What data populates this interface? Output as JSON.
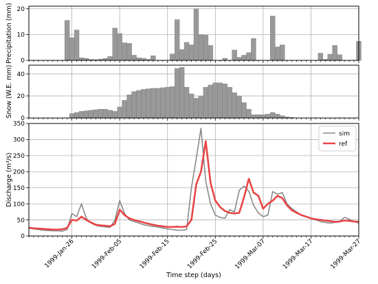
{
  "chart_data": {
    "type": "bar",
    "x": [
      "1999-Jan-17",
      "1999-Jan-18",
      "1999-Jan-19",
      "1999-Jan-20",
      "1999-Jan-21",
      "1999-Jan-22",
      "1999-Jan-23",
      "1999-Jan-24",
      "1999-Jan-25",
      "1999-Jan-26",
      "1999-Jan-27",
      "1999-Jan-28",
      "1999-Jan-29",
      "1999-Jan-30",
      "1999-Jan-31",
      "1999-Feb-01",
      "1999-Feb-02",
      "1999-Feb-03",
      "1999-Feb-04",
      "1999-Feb-05",
      "1999-Feb-06",
      "1999-Feb-07",
      "1999-Feb-08",
      "1999-Feb-09",
      "1999-Feb-10",
      "1999-Feb-11",
      "1999-Feb-12",
      "1999-Feb-13",
      "1999-Feb-14",
      "1999-Feb-15",
      "1999-Feb-16",
      "1999-Feb-17",
      "1999-Feb-18",
      "1999-Feb-19",
      "1999-Feb-20",
      "1999-Feb-21",
      "1999-Feb-22",
      "1999-Feb-23",
      "1999-Feb-24",
      "1999-Feb-25",
      "1999-Feb-26",
      "1999-Feb-27",
      "1999-Feb-28",
      "1999-Mar-01",
      "1999-Mar-02",
      "1999-Mar-03",
      "1999-Mar-04",
      "1999-Mar-05",
      "1999-Mar-06",
      "1999-Mar-07",
      "1999-Mar-08",
      "1999-Mar-09",
      "1999-Mar-10",
      "1999-Mar-11",
      "1999-Mar-12",
      "1999-Mar-13",
      "1999-Mar-14",
      "1999-Mar-15",
      "1999-Mar-16",
      "1999-Mar-17",
      "1999-Mar-18",
      "1999-Mar-19",
      "1999-Mar-20",
      "1999-Mar-21",
      "1999-Mar-22",
      "1999-Mar-23",
      "1999-Mar-24",
      "1999-Mar-25",
      "1999-Mar-26",
      "1999-Mar-27"
    ],
    "xticks": [
      "1999-Jan-26",
      "1999-Feb-05",
      "1999-Feb-15",
      "1999-Feb-25",
      "1999-Mar-07",
      "1999-Mar-17",
      "1999-Mar-27"
    ],
    "xlabel": "Time step (days)",
    "panels": [
      {
        "kind": "bar",
        "ylabel": "Precipitation (mm)",
        "ylim": [
          0,
          21
        ],
        "yticks": [
          0,
          10,
          20
        ],
        "values": [
          0,
          0,
          0,
          0,
          0,
          0,
          0,
          0,
          15.5,
          8.8,
          11.8,
          1,
          0.8,
          0.4,
          0.3,
          0.5,
          0.8,
          1.5,
          12.5,
          10.4,
          6.8,
          6.6,
          2,
          1,
          0.8,
          0.4,
          1.8,
          0,
          0,
          0,
          2.5,
          15.8,
          4.2,
          7,
          6,
          20,
          10,
          9.8,
          5.8,
          0,
          0,
          0.8,
          0,
          4,
          1.2,
          2,
          3,
          8.5,
          0,
          0,
          0,
          17.2,
          5.2,
          6,
          0,
          0,
          0,
          0,
          0,
          0,
          0,
          2.8,
          0.4,
          2.4,
          5.8,
          2.2,
          0,
          0,
          0,
          7.4
        ]
      },
      {
        "kind": "bar",
        "ylabel": "Snow (W.E. mm)",
        "ylim": [
          0,
          48
        ],
        "yticks": [
          0,
          20,
          40
        ],
        "values": [
          0,
          0,
          0,
          0,
          0,
          0,
          0,
          0,
          0,
          4,
          5,
          6,
          6.5,
          7,
          7.5,
          8,
          8,
          7,
          6,
          10,
          16,
          21,
          24,
          25,
          26,
          26.5,
          27,
          27,
          27.5,
          28,
          28.5,
          45,
          46,
          28,
          22,
          18,
          20,
          28,
          30,
          32,
          32,
          31,
          28,
          23,
          20,
          14,
          8,
          3,
          3,
          3,
          3.5,
          5,
          3.5,
          2,
          1,
          0.5,
          0,
          0,
          0,
          0,
          0,
          0,
          0,
          0,
          0,
          0,
          0,
          0,
          0,
          0
        ]
      },
      {
        "kind": "line",
        "ylabel": "Discharge (m³/s)",
        "ylim": [
          0,
          350
        ],
        "yticks": [
          0,
          50,
          100,
          150,
          200,
          250,
          300,
          350
        ],
        "legend": {
          "position": "top-right",
          "entries": [
            "sim",
            "ref"
          ]
        },
        "series": [
          {
            "name": "sim",
            "color": "#888888",
            "values": [
              24,
              22,
              20,
              18,
              17,
              16,
              16,
              15,
              20,
              70,
              60,
              100,
              55,
              40,
              33,
              30,
              28,
              27,
              50,
              110,
              70,
              50,
              45,
              40,
              35,
              32,
              30,
              28,
              25,
              22,
              20,
              18,
              18,
              20,
              150,
              240,
              335,
              170,
              100,
              65,
              58,
              55,
              82,
              75,
              142,
              155,
              140,
              95,
              72,
              60,
              65,
              138,
              130,
              135,
              100,
              85,
              75,
              65,
              60,
              55,
              50,
              45,
              42,
              40,
              42,
              45,
              58,
              52,
              45,
              40
            ]
          },
          {
            "name": "ref",
            "color": "#e84545",
            "values": [
              26,
              24,
              23,
              22,
              21,
              20,
              20,
              21,
              25,
              50,
              48,
              60,
              50,
              42,
              35,
              33,
              32,
              30,
              38,
              82,
              65,
              55,
              50,
              46,
              42,
              38,
              35,
              32,
              30,
              28,
              28,
              29,
              28,
              30,
              50,
              160,
              200,
              295,
              165,
              110,
              90,
              78,
              72,
              70,
              72,
              120,
              178,
              135,
              125,
              85,
              100,
              110,
              125,
              118,
              95,
              80,
              72,
              65,
              60,
              55,
              52,
              50,
              48,
              46,
              44,
              45,
              48,
              47,
              45,
              44
            ]
          }
        ]
      }
    ]
  }
}
